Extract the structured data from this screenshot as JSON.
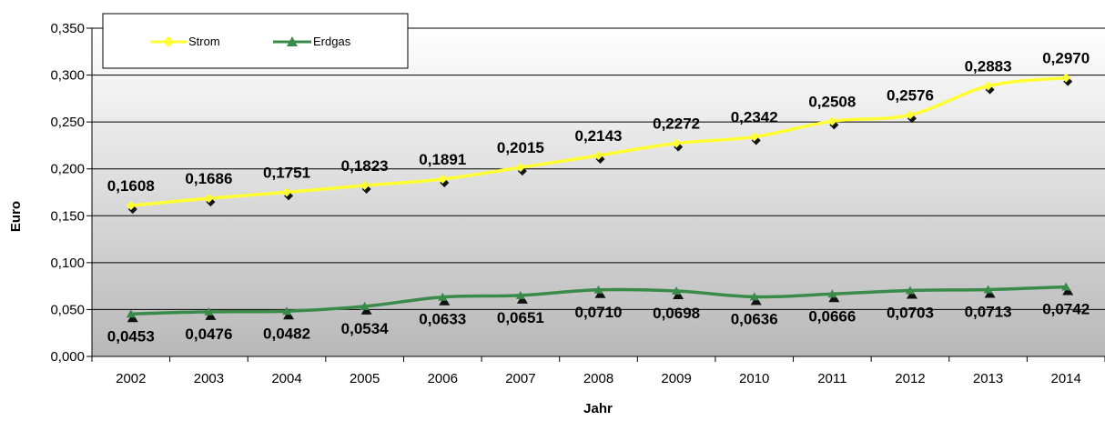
{
  "chart_data": {
    "type": "line",
    "title": "",
    "xlabel": "Jahr",
    "ylabel": "Euro",
    "categories": [
      "2002",
      "2003",
      "2004",
      "2005",
      "2006",
      "2007",
      "2008",
      "2009",
      "2010",
      "2011",
      "2012",
      "2013",
      "2014"
    ],
    "y_ticks": [
      "0,000",
      "0,050",
      "0,100",
      "0,150",
      "0,200",
      "0,250",
      "0,300",
      "0,350"
    ],
    "ylim": [
      0,
      0.35
    ],
    "grid": true,
    "legend_position": "top-left",
    "series": [
      {
        "name": "Strom",
        "color": "#ffff33",
        "marker": "diamond",
        "values": [
          0.1608,
          0.1686,
          0.1751,
          0.1823,
          0.1891,
          0.2015,
          0.2143,
          0.2272,
          0.2342,
          0.2508,
          0.2576,
          0.2883,
          0.297
        ],
        "labels": [
          "0,1608",
          "0,1686",
          "0,1751",
          "0,1823",
          "0,1891",
          "0,2015",
          "0,2143",
          "0,2272",
          "0,2342",
          "0,2508",
          "0,2576",
          "0,2883",
          "0,2970"
        ],
        "label_position": "above"
      },
      {
        "name": "Erdgas",
        "color": "#3a8a4a",
        "marker": "triangle",
        "values": [
          0.0453,
          0.0476,
          0.0482,
          0.0534,
          0.0633,
          0.0651,
          0.071,
          0.0698,
          0.0636,
          0.0666,
          0.0703,
          0.0713,
          0.0742
        ],
        "labels": [
          "0,0453",
          "0,0476",
          "0,0482",
          "0,0534",
          "0,0633",
          "0,0651",
          "0,0710",
          "0,0698",
          "0,0636",
          "0,0666",
          "0,0703",
          "0,0713",
          "0,0742"
        ],
        "label_position": "below"
      }
    ]
  }
}
